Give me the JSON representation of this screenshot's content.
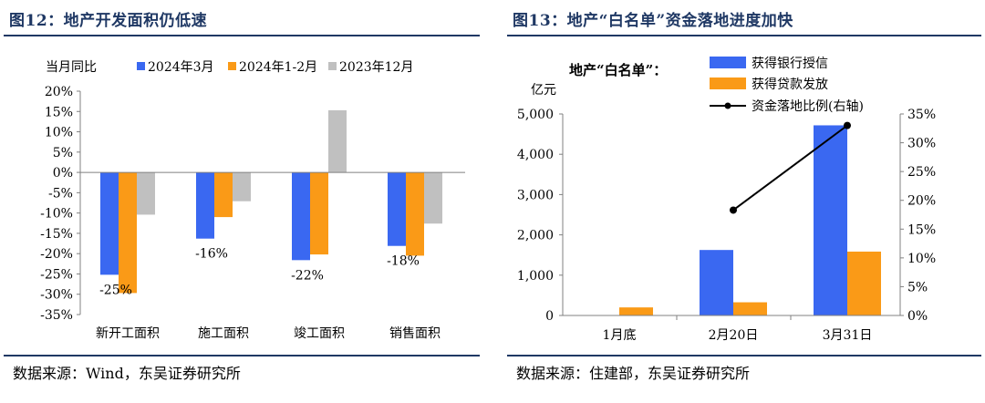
{
  "left": {
    "title": "图12：地产开发面积仍低速",
    "source": "数据来源：Wind，东吴证券研究所",
    "chart_data": {
      "type": "bar",
      "ylabel": "当月同比",
      "ylim": [
        -35,
        20
      ],
      "yticks": [
        "20%",
        "15%",
        "10%",
        "5%",
        "0%",
        "-5%",
        "-10%",
        "-15%",
        "-20%",
        "-25%",
        "-30%",
        "-35%"
      ],
      "categories": [
        "新开工面积",
        "施工面积",
        "竣工面积",
        "销售面积"
      ],
      "series": [
        {
          "name": "2024年3月",
          "color": "#3a68f1",
          "values": [
            -25.2,
            -16.3,
            -21.6,
            -18.1
          ]
        },
        {
          "name": "2024年1-2月",
          "color": "#fa9a17",
          "values": [
            -29.7,
            -11.0,
            -20.2,
            -20.5
          ]
        },
        {
          "name": "2023年12月",
          "color": "#c0c0c0",
          "values": [
            -10.4,
            -7.1,
            15.3,
            -12.6
          ]
        }
      ],
      "data_labels": [
        "-25%",
        "-16%",
        "-22%",
        "-18%"
      ]
    }
  },
  "right": {
    "title": "图13：地产“白名单”资金落地进度加快",
    "source": "数据来源：住建部，东吴证券研究所",
    "chart_data": {
      "type": "bar",
      "inset_label": "地产“白名单”：",
      "ylabel_left": "亿元",
      "ylim_left": [
        0,
        5000
      ],
      "yticks_left": [
        "5,000",
        "4,000",
        "3,000",
        "2,000",
        "1,000",
        "0"
      ],
      "ylim_right": [
        0,
        35
      ],
      "yticks_right": [
        "35%",
        "30%",
        "25%",
        "20%",
        "15%",
        "10%",
        "5%",
        "0%"
      ],
      "categories": [
        "1月底",
        "2月20日",
        "3月31日"
      ],
      "series": [
        {
          "name": "获得银行授信",
          "color": "#3a68f1",
          "values": [
            null,
            1625,
            4718
          ]
        },
        {
          "name": "获得贷款发放",
          "color": "#fa9a17",
          "values": [
            200,
            327,
            1585
          ]
        }
      ],
      "line_series": {
        "name": "资金落地比例(右轴)",
        "color": "#000000",
        "values": [
          null,
          18.3,
          33.0
        ]
      }
    }
  }
}
